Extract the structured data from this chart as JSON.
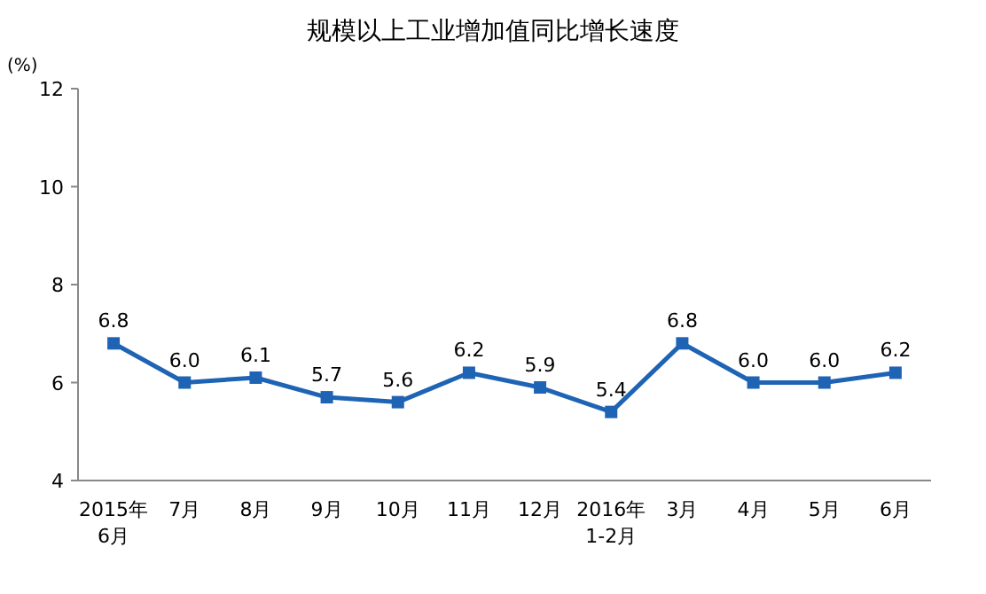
{
  "chart_data": {
    "type": "line",
    "title": "规模以上工业增加值同比增长速度",
    "ylabel": "(%)",
    "categories": [
      "2015年\n6月",
      "7月",
      "8月",
      "9月",
      "10月",
      "11月",
      "12月",
      "2016年\n1-2月",
      "3月",
      "4月",
      "5月",
      "6月"
    ],
    "series": [
      {
        "color": "#1f64b4",
        "values": [
          6.8,
          6.0,
          6.1,
          5.7,
          5.6,
          6.2,
          5.9,
          5.4,
          6.8,
          6.0,
          6.0,
          6.2
        ],
        "value_labels": [
          "6.8",
          "6.0",
          "6.1",
          "5.7",
          "5.6",
          "6.2",
          "5.9",
          "5.4",
          "6.8",
          "6.0",
          "6.0",
          "6.2"
        ]
      }
    ],
    "ylim": [
      4,
      12
    ],
    "yticks": [
      4,
      6,
      8,
      10,
      12
    ],
    "marker": "square",
    "line_style": "solid",
    "grid": false
  }
}
